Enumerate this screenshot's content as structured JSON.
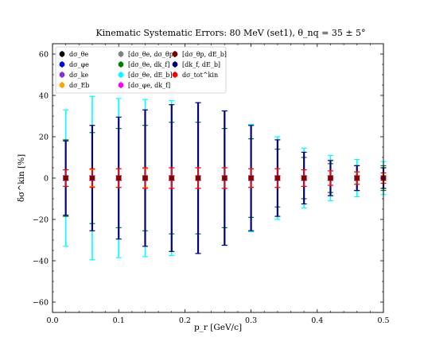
{
  "chart_data": {
    "type": "scatter",
    "title": "Kinematic Systematic Errors: 80 MeV (set1), θ_nq = 35 ± 5°",
    "xlabel": "p_r [GeV/c]",
    "ylabel": "δσ^kin [%]",
    "xlim": [
      0.0,
      0.5
    ],
    "ylim": [
      -65,
      65
    ],
    "xticks": [
      0.0,
      0.1,
      0.2,
      0.3,
      0.4,
      0.5
    ],
    "xtick_labels": [
      "0.0",
      "0.1",
      "0.2",
      "0.3",
      "0.4",
      "0.5"
    ],
    "yticks": [
      -60,
      -40,
      -20,
      0,
      20,
      40,
      60
    ],
    "ytick_labels": [
      "−60",
      "−40",
      "−20",
      "0",
      "20",
      "40",
      "60"
    ],
    "grid": false,
    "legend_position": "top-left",
    "x": [
      0.02,
      0.06,
      0.1,
      0.14,
      0.18,
      0.22,
      0.26,
      0.3,
      0.34,
      0.38,
      0.42,
      0.46,
      0.5
    ],
    "series": [
      {
        "name": "dσ_θe",
        "color": "#000000",
        "values": [
          0,
          0,
          0,
          0,
          0,
          0,
          0,
          0,
          0,
          0,
          0,
          0,
          0
        ],
        "errors": [
          1,
          1,
          1,
          1,
          1,
          1,
          1,
          1,
          1,
          1,
          1,
          1,
          1
        ]
      },
      {
        "name": "dσ_φe",
        "color": "#0000ff",
        "values": [
          0,
          0,
          0,
          0,
          0,
          0,
          0,
          0,
          0,
          0,
          0,
          0,
          0
        ],
        "errors": [
          1,
          1,
          1,
          1,
          1,
          1,
          1,
          1,
          1,
          1,
          1,
          1,
          1
        ]
      },
      {
        "name": "dσ_ke",
        "color": "#8a2be2",
        "values": [
          0,
          0,
          0,
          0,
          0,
          0,
          0,
          0,
          0,
          0,
          0,
          0,
          0
        ],
        "errors": [
          1,
          1,
          1,
          1,
          1,
          1,
          1,
          1,
          1,
          1,
          1,
          1,
          1
        ]
      },
      {
        "name": "dσ_Eb",
        "color": "#ffa500",
        "values": [
          0,
          0,
          0,
          0,
          0,
          0,
          0,
          0,
          0,
          0,
          0,
          0,
          0
        ],
        "errors": [
          4,
          4,
          4.5,
          4.5,
          5,
          5,
          5,
          4.5,
          4.5,
          4,
          3.5,
          3,
          2.5
        ]
      },
      {
        "name": "[dσ_θe, dσ_θp]",
        "color": "#808080",
        "values": [
          0,
          0,
          0,
          0,
          0,
          0,
          0,
          0,
          0,
          0,
          0,
          0,
          0
        ],
        "errors": [
          1,
          1,
          1,
          1,
          1,
          1,
          1,
          1,
          1,
          1,
          1,
          1,
          1
        ]
      },
      {
        "name": "[dσ_θe, dk_f]",
        "color": "#008000",
        "values": [
          0,
          0,
          0,
          0,
          0,
          0,
          0,
          0,
          0,
          0,
          0,
          0,
          0
        ],
        "errors": [
          18.5,
          22,
          24,
          25.5,
          27,
          27,
          24,
          19,
          14,
          10,
          7,
          6,
          6
        ]
      },
      {
        "name": "[dσ_θe, dE_b]",
        "color": "#00ffff",
        "values": [
          0,
          0,
          0,
          0,
          0,
          0,
          0,
          0,
          0,
          0,
          0,
          0,
          0
        ],
        "errors": [
          33,
          39.5,
          38.5,
          38,
          37.5,
          36.5,
          32.5,
          26,
          20,
          14.5,
          11,
          9,
          8
        ]
      },
      {
        "name": "[dσ_φe, dk_f]",
        "color": "#ff00ff",
        "values": [
          0,
          0,
          0,
          0,
          0,
          0,
          0,
          0,
          0,
          0,
          0,
          0,
          0
        ],
        "errors": [
          1,
          1,
          1,
          1,
          1,
          1,
          1,
          1,
          1,
          1,
          1,
          1,
          1
        ]
      },
      {
        "name": "[dσ_θp, dE_b]",
        "color": "#800000",
        "values": [
          0,
          0,
          0,
          0,
          0,
          0,
          0,
          0,
          0,
          0,
          0,
          0,
          0
        ],
        "errors": [
          1,
          1,
          1,
          1,
          1,
          1,
          1,
          1,
          1,
          1,
          1,
          1,
          1
        ]
      },
      {
        "name": "[dk_f, dE_b]",
        "color": "#000080",
        "values": [
          0,
          0,
          0,
          0,
          0,
          0,
          0,
          0,
          0,
          0,
          0,
          0,
          0
        ],
        "errors": [
          18,
          25.5,
          29.5,
          33,
          35.5,
          36.5,
          32.5,
          25.5,
          18.5,
          12.5,
          8.5,
          6,
          5
        ]
      },
      {
        "name": "dσ_tot^kin",
        "color": "#ff0000",
        "values": [
          0,
          0,
          0,
          0,
          0,
          0,
          0,
          0,
          0,
          0,
          0,
          0,
          0
        ],
        "errors": [
          4,
          4.5,
          4.5,
          5,
          5,
          5,
          5,
          4.5,
          4.5,
          4,
          3.5,
          3,
          2.5
        ]
      }
    ]
  }
}
